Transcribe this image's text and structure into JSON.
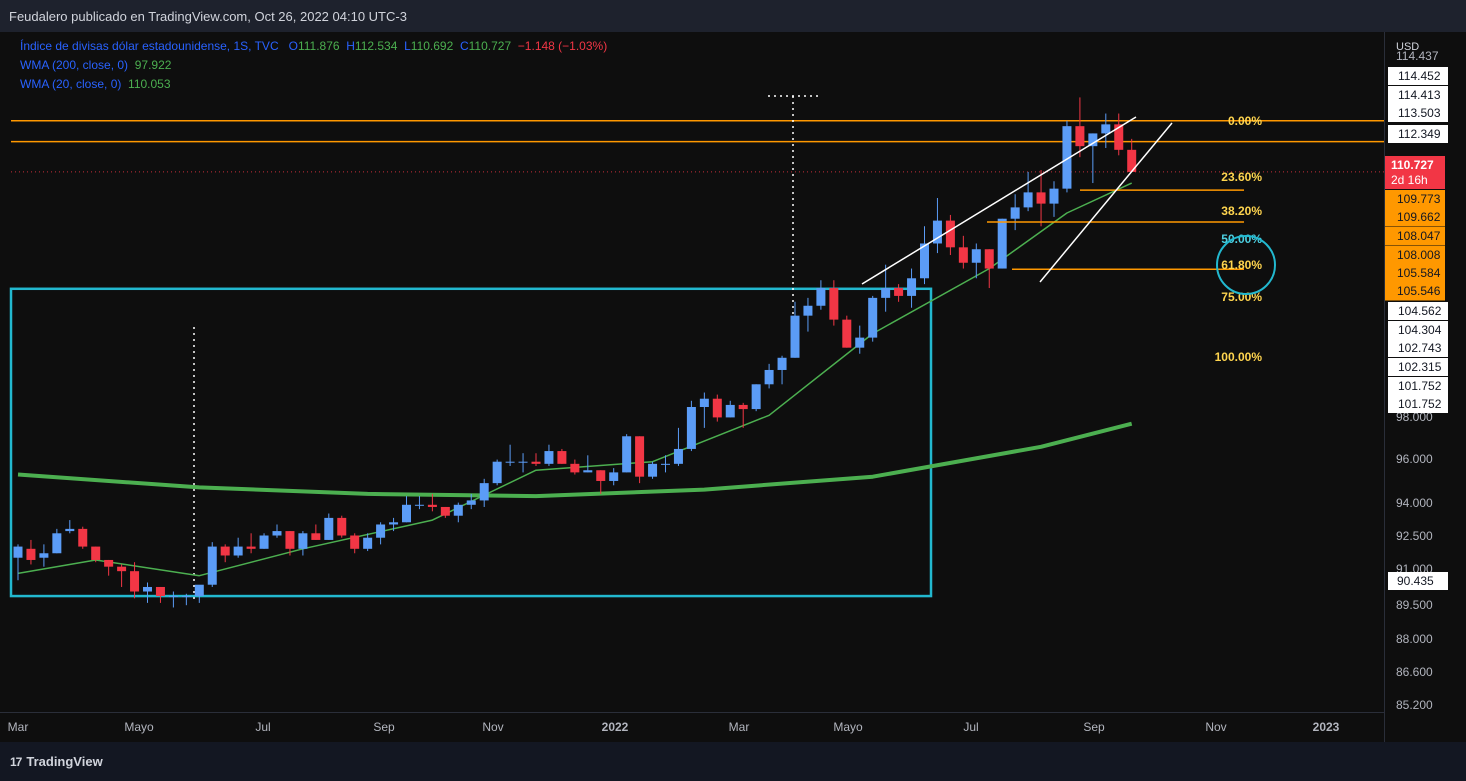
{
  "header": {
    "publish_line": "Feudalero publicado en TradingView.com, Oct 26, 2022 04:10 UTC-3"
  },
  "legend": {
    "symbol": "Índice de divisas dólar estadounidense, 1S, TVC",
    "open_label": "O",
    "open": "111.876",
    "high_label": "H",
    "high": "112.534",
    "low_label": "L",
    "low": "110.692",
    "close_label": "C",
    "close": "110.727",
    "change": "−1.148 (−1.03%)",
    "wma200_label": "WMA (200, close, 0)",
    "wma200_value": "97.922",
    "wma20_label": "WMA (20, close, 0)",
    "wma20_value": "110.053"
  },
  "price_axis": {
    "currency": "USD",
    "ticks": [
      "98.000",
      "96.000",
      "94.000",
      "92.500",
      "91.000",
      "89.500",
      "88.000",
      "86.600",
      "85.200"
    ],
    "partial_top_tick": "114.437",
    "level_labels": [
      "114.452",
      "114.413",
      "113.503",
      "112.349",
      "104.562",
      "104.304",
      "102.743",
      "102.315",
      "101.752",
      "101.752",
      "90.435"
    ],
    "fib_price_labels": [
      "109.773",
      "109.662",
      "108.047",
      "108.008",
      "105.584",
      "105.546"
    ],
    "current_price": "110.727",
    "countdown": "2d 16h"
  },
  "fibonacci": {
    "levels": [
      "0.00%",
      "23.60%",
      "38.20%",
      "50.00%",
      "61.80%",
      "75.00%",
      "100.00%"
    ]
  },
  "time_axis": {
    "labels": [
      "Mar",
      "Mayo",
      "Jul",
      "Sep",
      "Nov",
      "2022",
      "Mar",
      "Mayo",
      "Jul",
      "Sep",
      "Nov",
      "2023"
    ]
  },
  "footer": {
    "brand": "TradingView"
  },
  "colors": {
    "up": "#5b9cf6",
    "down": "#f23645",
    "wma200": "#4caf50",
    "wma20": "#4caf50",
    "fib": "#ff9800",
    "box": "#22b8cf",
    "level": "#ff9800"
  },
  "chart_data": {
    "type": "candlestick",
    "title": "Índice de divisas dólar estadounidense, 1S, TVC",
    "interval": "1W",
    "ylim": [
      84.8,
      115.3
    ],
    "y_scale": "log",
    "y_ticks": [
      98.0,
      96.0,
      94.0,
      92.5,
      91.0,
      89.5,
      88.0,
      86.6,
      85.2
    ],
    "x_labels": [
      "Mar",
      "Mayo",
      "Jul",
      "Sep",
      "Nov",
      "2022",
      "Mar",
      "Mayo",
      "Jul",
      "Sep",
      "Nov",
      "2023"
    ],
    "x_range": [
      "2021-02-22",
      "2023-02-20"
    ],
    "candles": [
      {
        "x": "2021-03-01",
        "o": 91.7,
        "h": 92.3,
        "l": 90.7,
        "c": 92.2
      },
      {
        "x": "2021-03-08",
        "o": 92.1,
        "h": 92.5,
        "l": 91.4,
        "c": 91.6
      },
      {
        "x": "2021-03-15",
        "o": 91.7,
        "h": 92.3,
        "l": 91.3,
        "c": 91.9
      },
      {
        "x": "2021-03-22",
        "o": 91.9,
        "h": 93.0,
        "l": 91.9,
        "c": 92.8
      },
      {
        "x": "2021-03-29",
        "o": 92.9,
        "h": 93.4,
        "l": 92.8,
        "c": 93.0
      },
      {
        "x": "2021-04-05",
        "o": 93.0,
        "h": 93.1,
        "l": 92.1,
        "c": 92.2
      },
      {
        "x": "2021-04-12",
        "o": 92.2,
        "h": 92.2,
        "l": 91.5,
        "c": 91.6
      },
      {
        "x": "2021-04-19",
        "o": 91.6,
        "h": 91.6,
        "l": 90.9,
        "c": 91.3
      },
      {
        "x": "2021-04-26",
        "o": 91.3,
        "h": 91.4,
        "l": 90.4,
        "c": 91.1
      },
      {
        "x": "2021-05-03",
        "o": 91.1,
        "h": 91.5,
        "l": 89.9,
        "c": 90.2
      },
      {
        "x": "2021-05-10",
        "o": 90.2,
        "h": 90.6,
        "l": 89.7,
        "c": 90.4
      },
      {
        "x": "2021-05-17",
        "o": 90.4,
        "h": 90.4,
        "l": 89.7,
        "c": 90.0
      },
      {
        "x": "2021-05-24",
        "o": 90.0,
        "h": 90.2,
        "l": 89.5,
        "c": 90.0
      },
      {
        "x": "2021-05-31",
        "o": 90.0,
        "h": 90.1,
        "l": 89.6,
        "c": 90.0
      },
      {
        "x": "2021-06-07",
        "o": 90.0,
        "h": 90.4,
        "l": 89.7,
        "c": 90.5
      },
      {
        "x": "2021-06-14",
        "o": 90.5,
        "h": 92.4,
        "l": 90.4,
        "c": 92.2
      },
      {
        "x": "2021-06-21",
        "o": 92.2,
        "h": 92.3,
        "l": 91.5,
        "c": 91.8
      },
      {
        "x": "2021-06-28",
        "o": 91.8,
        "h": 92.6,
        "l": 91.7,
        "c": 92.2
      },
      {
        "x": "2021-07-05",
        "o": 92.2,
        "h": 92.8,
        "l": 91.9,
        "c": 92.1
      },
      {
        "x": "2021-07-12",
        "o": 92.1,
        "h": 92.8,
        "l": 92.1,
        "c": 92.7
      },
      {
        "x": "2021-07-19",
        "o": 92.7,
        "h": 93.2,
        "l": 92.6,
        "c": 92.9
      },
      {
        "x": "2021-07-26",
        "o": 92.9,
        "h": 92.9,
        "l": 91.8,
        "c": 92.1
      },
      {
        "x": "2021-08-02",
        "o": 92.1,
        "h": 92.9,
        "l": 91.8,
        "c": 92.8
      },
      {
        "x": "2021-08-09",
        "o": 92.8,
        "h": 93.2,
        "l": 92.5,
        "c": 92.5
      },
      {
        "x": "2021-08-16",
        "o": 92.5,
        "h": 93.7,
        "l": 92.5,
        "c": 93.5
      },
      {
        "x": "2021-08-23",
        "o": 93.5,
        "h": 93.6,
        "l": 92.6,
        "c": 92.7
      },
      {
        "x": "2021-08-30",
        "o": 92.7,
        "h": 92.8,
        "l": 91.9,
        "c": 92.1
      },
      {
        "x": "2021-09-06",
        "o": 92.1,
        "h": 92.8,
        "l": 92.0,
        "c": 92.6
      },
      {
        "x": "2021-09-13",
        "o": 92.6,
        "h": 93.3,
        "l": 92.3,
        "c": 93.2
      },
      {
        "x": "2021-09-20",
        "o": 93.2,
        "h": 93.5,
        "l": 92.9,
        "c": 93.3
      },
      {
        "x": "2021-09-27",
        "o": 93.3,
        "h": 94.5,
        "l": 93.3,
        "c": 94.1
      },
      {
        "x": "2021-10-04",
        "o": 94.1,
        "h": 94.5,
        "l": 93.9,
        "c": 94.1
      },
      {
        "x": "2021-10-11",
        "o": 94.1,
        "h": 94.6,
        "l": 93.8,
        "c": 94.0
      },
      {
        "x": "2021-10-18",
        "o": 94.0,
        "h": 94.0,
        "l": 93.5,
        "c": 93.6
      },
      {
        "x": "2021-10-25",
        "o": 93.6,
        "h": 94.2,
        "l": 93.3,
        "c": 94.1
      },
      {
        "x": "2021-11-01",
        "o": 94.1,
        "h": 94.6,
        "l": 93.9,
        "c": 94.3
      },
      {
        "x": "2021-11-08",
        "o": 94.3,
        "h": 95.3,
        "l": 94.0,
        "c": 95.1
      },
      {
        "x": "2021-11-15",
        "o": 95.1,
        "h": 96.2,
        "l": 95.0,
        "c": 96.1
      },
      {
        "x": "2021-11-22",
        "o": 96.1,
        "h": 96.9,
        "l": 95.9,
        "c": 96.1
      },
      {
        "x": "2021-11-29",
        "o": 96.1,
        "h": 96.5,
        "l": 95.6,
        "c": 96.1
      },
      {
        "x": "2021-12-06",
        "o": 96.1,
        "h": 96.5,
        "l": 95.9,
        "c": 96.0
      },
      {
        "x": "2021-12-13",
        "o": 96.0,
        "h": 96.9,
        "l": 95.9,
        "c": 96.6
      },
      {
        "x": "2021-12-20",
        "o": 96.6,
        "h": 96.7,
        "l": 96.0,
        "c": 96.0
      },
      {
        "x": "2021-12-27",
        "o": 96.0,
        "h": 96.2,
        "l": 95.5,
        "c": 95.6
      },
      {
        "x": "2022-01-03",
        "o": 95.6,
        "h": 96.4,
        "l": 95.6,
        "c": 95.7
      },
      {
        "x": "2022-01-10",
        "o": 95.7,
        "h": 95.7,
        "l": 94.6,
        "c": 95.2
      },
      {
        "x": "2022-01-17",
        "o": 95.2,
        "h": 95.8,
        "l": 95.0,
        "c": 95.6
      },
      {
        "x": "2022-01-24",
        "o": 95.6,
        "h": 97.4,
        "l": 95.6,
        "c": 97.3
      },
      {
        "x": "2022-01-31",
        "o": 97.3,
        "h": 97.3,
        "l": 95.1,
        "c": 95.4
      },
      {
        "x": "2022-02-07",
        "o": 95.4,
        "h": 96.1,
        "l": 95.3,
        "c": 96.0
      },
      {
        "x": "2022-02-14",
        "o": 96.0,
        "h": 96.4,
        "l": 95.6,
        "c": 96.0
      },
      {
        "x": "2022-02-21",
        "o": 96.0,
        "h": 97.7,
        "l": 95.9,
        "c": 96.7
      },
      {
        "x": "2022-02-28",
        "o": 96.7,
        "h": 99.0,
        "l": 96.6,
        "c": 98.7
      },
      {
        "x": "2022-03-07",
        "o": 98.7,
        "h": 99.4,
        "l": 97.7,
        "c": 99.1
      },
      {
        "x": "2022-03-14",
        "o": 99.1,
        "h": 99.3,
        "l": 98.0,
        "c": 98.2
      },
      {
        "x": "2022-03-21",
        "o": 98.2,
        "h": 99.0,
        "l": 98.2,
        "c": 98.8
      },
      {
        "x": "2022-03-28",
        "o": 98.8,
        "h": 98.9,
        "l": 97.7,
        "c": 98.6
      },
      {
        "x": "2022-04-04",
        "o": 98.6,
        "h": 99.8,
        "l": 98.5,
        "c": 99.8
      },
      {
        "x": "2022-04-11",
        "o": 99.8,
        "h": 100.8,
        "l": 99.6,
        "c": 100.5
      },
      {
        "x": "2022-04-18",
        "o": 100.5,
        "h": 101.2,
        "l": 99.8,
        "c": 101.1
      },
      {
        "x": "2022-04-25",
        "o": 101.1,
        "h": 103.9,
        "l": 101.1,
        "c": 103.2
      },
      {
        "x": "2022-05-02",
        "o": 103.2,
        "h": 104.1,
        "l": 102.4,
        "c": 103.7
      },
      {
        "x": "2022-05-09",
        "o": 103.7,
        "h": 105.0,
        "l": 103.5,
        "c": 104.6
      },
      {
        "x": "2022-05-16",
        "o": 104.6,
        "h": 105.0,
        "l": 102.7,
        "c": 103.0
      },
      {
        "x": "2022-05-23",
        "o": 103.0,
        "h": 103.2,
        "l": 101.6,
        "c": 101.6
      },
      {
        "x": "2022-05-30",
        "o": 101.6,
        "h": 102.7,
        "l": 101.3,
        "c": 102.1
      },
      {
        "x": "2022-06-06",
        "o": 102.1,
        "h": 104.2,
        "l": 101.9,
        "c": 104.1
      },
      {
        "x": "2022-06-13",
        "o": 104.1,
        "h": 105.8,
        "l": 103.4,
        "c": 104.6
      },
      {
        "x": "2022-06-20",
        "o": 104.6,
        "h": 104.8,
        "l": 103.9,
        "c": 104.2
      },
      {
        "x": "2022-06-27",
        "o": 104.2,
        "h": 105.6,
        "l": 103.6,
        "c": 105.1
      },
      {
        "x": "2022-07-04",
        "o": 105.1,
        "h": 107.8,
        "l": 104.8,
        "c": 106.9
      },
      {
        "x": "2022-07-11",
        "o": 106.9,
        "h": 109.3,
        "l": 106.4,
        "c": 108.1
      },
      {
        "x": "2022-07-18",
        "o": 108.1,
        "h": 108.4,
        "l": 106.3,
        "c": 106.7
      },
      {
        "x": "2022-07-25",
        "o": 106.7,
        "h": 107.3,
        "l": 105.6,
        "c": 105.9
      },
      {
        "x": "2022-08-01",
        "o": 105.9,
        "h": 106.9,
        "l": 105.1,
        "c": 106.6
      },
      {
        "x": "2022-08-08",
        "o": 106.6,
        "h": 106.6,
        "l": 104.6,
        "c": 105.6
      },
      {
        "x": "2022-08-15",
        "o": 105.6,
        "h": 108.2,
        "l": 105.6,
        "c": 108.2
      },
      {
        "x": "2022-08-22",
        "o": 108.2,
        "h": 109.5,
        "l": 107.6,
        "c": 108.8
      },
      {
        "x": "2022-08-29",
        "o": 108.8,
        "h": 110.7,
        "l": 108.6,
        "c": 109.6
      },
      {
        "x": "2022-09-05",
        "o": 109.6,
        "h": 110.8,
        "l": 107.8,
        "c": 109.0
      },
      {
        "x": "2022-09-12",
        "o": 109.0,
        "h": 110.2,
        "l": 108.3,
        "c": 109.8
      },
      {
        "x": "2022-09-19",
        "o": 109.8,
        "h": 113.5,
        "l": 109.6,
        "c": 113.2
      },
      {
        "x": "2022-09-26",
        "o": 113.2,
        "h": 114.8,
        "l": 111.5,
        "c": 112.1
      },
      {
        "x": "2022-10-03",
        "o": 112.1,
        "h": 112.8,
        "l": 110.1,
        "c": 112.8
      },
      {
        "x": "2022-10-10",
        "o": 112.8,
        "h": 113.9,
        "l": 112.0,
        "c": 113.3
      },
      {
        "x": "2022-10-17",
        "o": 113.3,
        "h": 113.9,
        "l": 111.6,
        "c": 111.9
      },
      {
        "x": "2022-10-24",
        "o": 111.9,
        "h": 112.5,
        "l": 110.7,
        "c": 110.7
      }
    ],
    "wma200": [
      {
        "x": "2021-03-01",
        "y": 95.5
      },
      {
        "x": "2021-06-07",
        "y": 94.9
      },
      {
        "x": "2021-09-06",
        "y": 94.6
      },
      {
        "x": "2021-12-06",
        "y": 94.5
      },
      {
        "x": "2022-03-07",
        "y": 94.8
      },
      {
        "x": "2022-06-06",
        "y": 95.4
      },
      {
        "x": "2022-09-05",
        "y": 96.8
      },
      {
        "x": "2022-10-24",
        "y": 97.9
      }
    ],
    "wma20": [
      {
        "x": "2021-03-01",
        "y": 91.0
      },
      {
        "x": "2021-04-12",
        "y": 91.6
      },
      {
        "x": "2021-06-07",
        "y": 90.9
      },
      {
        "x": "2021-08-02",
        "y": 92.1
      },
      {
        "x": "2021-10-11",
        "y": 93.4
      },
      {
        "x": "2021-12-06",
        "y": 95.7
      },
      {
        "x": "2022-02-07",
        "y": 96.1
      },
      {
        "x": "2022-04-11",
        "y": 98.3
      },
      {
        "x": "2022-06-06",
        "y": 102.3
      },
      {
        "x": "2022-08-08",
        "y": 105.6
      },
      {
        "x": "2022-09-19",
        "y": 108.5
      },
      {
        "x": "2022-10-24",
        "y": 110.1
      }
    ],
    "horizontal_levels": [
      113.5,
      112.35
    ],
    "fibonacci_retracement": [
      {
        "level": "0.00%",
        "price": 113.503
      },
      {
        "level": "23.60%",
        "price": 109.718
      },
      {
        "level": "38.20%",
        "price": 108.03
      },
      {
        "level": "61.80%",
        "price": 105.565
      },
      {
        "level": "50.00%",
        "price": null
      },
      {
        "level": "75.00%",
        "price": null
      },
      {
        "level": "100.00%",
        "price": null
      }
    ],
    "rectangle": {
      "x_start": "2021-02-22",
      "x_end": "2022-06-13",
      "y_top": 104.562,
      "y_bottom": 90.0
    },
    "annotations": [
      "rising wedge trendlines",
      "dotted vertical markers",
      "circle near 61.80%"
    ],
    "grid": false
  }
}
